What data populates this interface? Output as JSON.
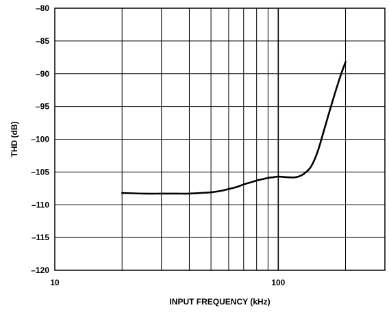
{
  "chart_data": {
    "type": "line",
    "xlabel": "INPUT FREQUENCY (kHz)",
    "ylabel": "THD (dB)",
    "xscale": "log",
    "xlim": [
      10,
      300
    ],
    "ylim": [
      -120,
      -80
    ],
    "x_ticks": [
      10,
      100
    ],
    "x_tick_labels": [
      "10",
      "100"
    ],
    "y_ticks": [
      -80,
      -85,
      -90,
      -95,
      -100,
      -105,
      -110,
      -115,
      -120
    ],
    "y_tick_labels": [
      "–80",
      "–85",
      "–90",
      "–95",
      "–100",
      "–105",
      "–110",
      "–115",
      "–120"
    ],
    "grid": true,
    "series": [
      {
        "color": "#000000",
        "x": [
          20,
          25,
          30,
          35,
          40,
          45,
          50,
          55,
          60,
          65,
          70,
          75,
          80,
          85,
          90,
          95,
          100,
          110,
          120,
          130,
          140,
          150,
          160,
          170,
          180,
          190,
          200
        ],
        "y": [
          -108.2,
          -108.3,
          -108.3,
          -108.3,
          -108.3,
          -108.2,
          -108.1,
          -107.9,
          -107.6,
          -107.3,
          -106.9,
          -106.6,
          -106.3,
          -106.1,
          -105.9,
          -105.8,
          -105.7,
          -105.8,
          -105.8,
          -105.3,
          -104.2,
          -101.9,
          -98.7,
          -95.6,
          -92.8,
          -90.3,
          -88.2
        ]
      }
    ]
  }
}
